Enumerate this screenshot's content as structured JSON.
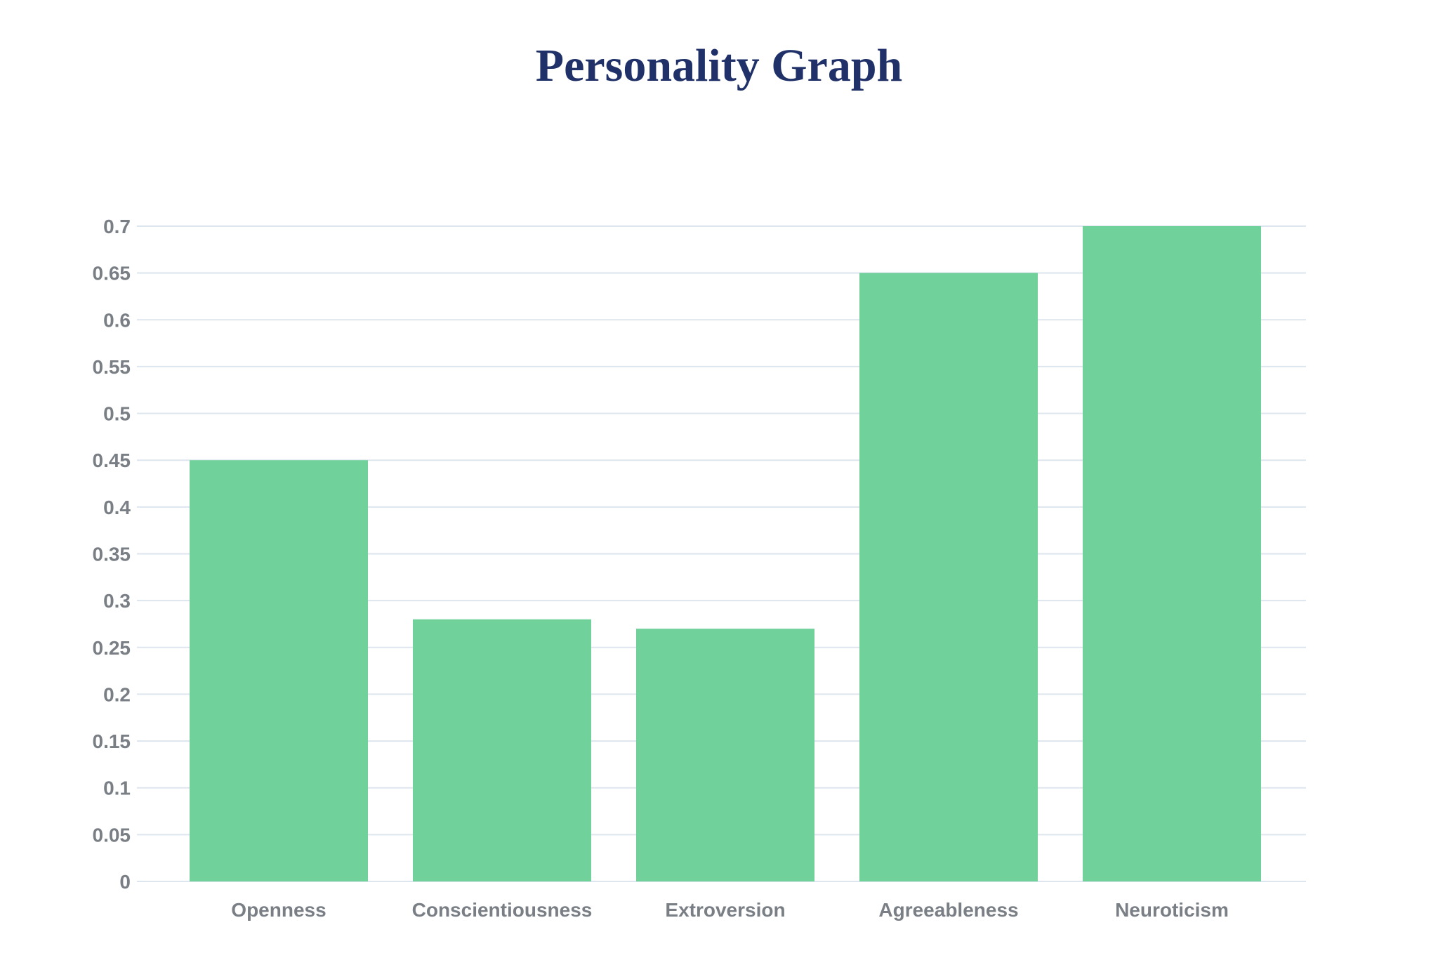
{
  "chart_data": {
    "type": "bar",
    "title": "Personality Graph",
    "xlabel": "",
    "ylabel": "",
    "categories": [
      "Openness",
      "Conscientiousness",
      "Extroversion",
      "Agreeableness",
      "Neuroticism"
    ],
    "values": [
      0.45,
      0.28,
      0.27,
      0.65,
      0.7
    ],
    "ylim": [
      0,
      0.7
    ],
    "yticks": [
      "0",
      "0.05",
      "0.1",
      "0.15",
      "0.2",
      "0.25",
      "0.3",
      "0.35",
      "0.4",
      "0.45",
      "0.5",
      "0.55",
      "0.6",
      "0.65",
      "0.7"
    ],
    "grid": true,
    "legend": "none",
    "colors": {
      "bar": "#71d19b",
      "grid": "#dde6ee",
      "tick_label": "#7a7f86",
      "title": "#1f3168"
    }
  }
}
